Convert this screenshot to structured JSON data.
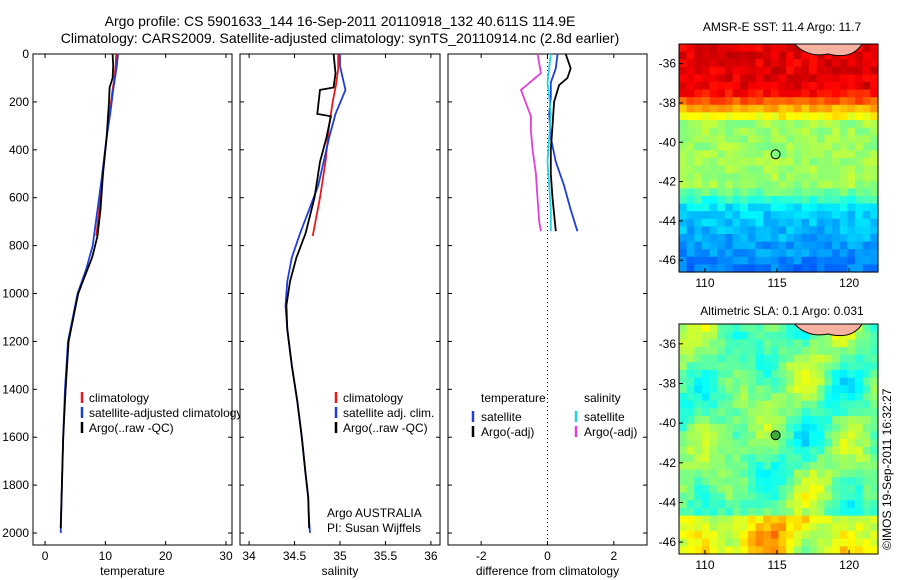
{
  "header": {
    "line1": "Argo profile: CS 5901633_144 16-Sep-2011 20110918_132 40.611S 114.9E",
    "line2": "Climatology: CARS2009. Satellite-adjusted climatology: synTS_20110914.nc (2.8d earlier)"
  },
  "credits": {
    "program": "Argo AUSTRALIA",
    "pi": "PI: Susan Wijffels",
    "stamp": "©IMOS 19-Sep-2011 16:32:27"
  },
  "colors": {
    "climatology": "#e41a1c",
    "satellite": "#1f3fd6",
    "argo": "#000000",
    "sal_satellite": "#22d3e0",
    "sal_argo": "#e23fd8",
    "map_marker": "#000000"
  },
  "chart_data": [
    {
      "type": "line",
      "id": "temperature",
      "xlabel": "temperature",
      "ylabel": "",
      "xlim": [
        -2,
        31
      ],
      "ylim": [
        2050,
        0
      ],
      "xticks": [
        0,
        10,
        20,
        30
      ],
      "yticks": [
        0,
        200,
        400,
        600,
        800,
        1000,
        1200,
        1400,
        1600,
        1800,
        2000
      ],
      "legend": [
        "climatology",
        "satellite-adjusted climatology",
        "Argo(..raw -QC)"
      ],
      "legend_position": "lower-center",
      "series": [
        {
          "name": "climatology",
          "color_key": "climatology",
          "x": [
            11.8,
            11.7,
            11.5,
            11.2,
            10.7,
            10.2,
            9.5,
            9.0,
            8.5
          ],
          "y": [
            0,
            50,
            100,
            150,
            250,
            350,
            500,
            650,
            760
          ]
        },
        {
          "name": "satellite-adjusted climatology",
          "color_key": "satellite",
          "x": [
            12.1,
            11.9,
            11.6,
            11.3,
            10.8,
            10.2,
            9.5,
            8.7,
            7.9,
            6.8,
            5.4,
            4.6,
            3.8,
            3.3,
            3.0,
            2.8,
            2.7,
            2.6
          ],
          "y": [
            0,
            50,
            100,
            150,
            250,
            350,
            500,
            650,
            800,
            900,
            1000,
            1100,
            1200,
            1400,
            1600,
            1800,
            1900,
            2000
          ]
        },
        {
          "name": "Argo(..raw -QC)",
          "color_key": "argo",
          "x": [
            11.2,
            11.3,
            11.2,
            10.7,
            10.6,
            10.2,
            9.6,
            9.2,
            8.7,
            7.8,
            6.7,
            5.5,
            4.7,
            3.9,
            3.4,
            3.0,
            2.8,
            2.6
          ],
          "y": [
            0,
            50,
            100,
            140,
            200,
            350,
            500,
            650,
            760,
            850,
            920,
            1000,
            1100,
            1200,
            1400,
            1600,
            1800,
            1980
          ]
        }
      ]
    },
    {
      "type": "line",
      "id": "salinity",
      "xlabel": "salinity",
      "ylabel": "",
      "xlim": [
        33.9,
        36.1
      ],
      "ylim": [
        2050,
        0
      ],
      "xticks": [
        34,
        34.5,
        35,
        35.5,
        36
      ],
      "xticklabels": [
        "34",
        "34.5",
        "35",
        "35.5",
        "36"
      ],
      "legend": [
        "climatology",
        "satellite adj. clim.",
        "Argo(..raw -QC)"
      ],
      "legend_position": "lower-right",
      "series": [
        {
          "name": "climatology",
          "color_key": "climatology",
          "x": [
            34.98,
            34.98,
            34.96,
            34.92,
            34.88,
            34.84,
            34.78,
            34.7
          ],
          "y": [
            0,
            60,
            120,
            200,
            300,
            450,
            600,
            760
          ]
        },
        {
          "name": "satellite adj. clim.",
          "color_key": "satellite",
          "x": [
            35.0,
            35.0,
            35.03,
            35.06,
            34.95,
            34.88,
            34.82,
            34.76,
            34.66,
            34.56,
            34.47,
            34.42,
            34.4,
            34.42,
            34.47,
            34.53,
            34.58,
            34.62,
            34.65,
            34.66,
            34.67
          ],
          "y": [
            0,
            50,
            100,
            150,
            250,
            350,
            450,
            550,
            650,
            750,
            850,
            950,
            1050,
            1150,
            1300,
            1450,
            1600,
            1750,
            1850,
            1950,
            2000
          ]
        },
        {
          "name": "Argo(..raw -QC)",
          "color_key": "argo",
          "x": [
            34.93,
            34.95,
            34.93,
            34.78,
            34.75,
            34.9,
            34.85,
            34.78,
            34.72,
            34.62,
            34.52,
            34.45,
            34.41,
            34.42,
            34.47,
            34.53,
            34.58,
            34.62,
            34.65,
            34.66
          ],
          "y": [
            0,
            80,
            140,
            150,
            250,
            260,
            350,
            450,
            600,
            750,
            850,
            950,
            1050,
            1150,
            1300,
            1450,
            1600,
            1750,
            1850,
            1980
          ]
        }
      ]
    },
    {
      "type": "line",
      "id": "difference",
      "xlabel": "difference from climatology",
      "ylabel": "",
      "xlim": [
        -3,
        3
      ],
      "ylim": [
        2050,
        0
      ],
      "xticks": [
        -2,
        0,
        2
      ],
      "zero_line": "dotted",
      "legend_groups": [
        {
          "title": "temperature",
          "entries": [
            "satellite",
            "Argo(-adj)"
          ]
        },
        {
          "title": "salinity",
          "entries": [
            "satellite",
            "Argo(-adj)"
          ]
        }
      ],
      "legend_position": "lower-center",
      "series": [
        {
          "name": "satellite",
          "group": "temperature",
          "color_key": "satellite",
          "x": [
            0.3,
            0.25,
            0.1,
            0.1,
            0.05,
            0.1,
            0.25,
            0.5,
            0.7,
            0.9
          ],
          "y": [
            0,
            60,
            120,
            180,
            250,
            350,
            450,
            550,
            650,
            740
          ]
        },
        {
          "name": "Argo(-adj)",
          "group": "temperature",
          "color_key": "argo",
          "x": [
            0.55,
            0.7,
            0.6,
            0.35,
            0.2,
            0.15,
            0.1,
            0.1,
            0.15,
            0.25
          ],
          "y": [
            0,
            60,
            100,
            130,
            200,
            300,
            400,
            500,
            600,
            740
          ]
        },
        {
          "name": "satellite",
          "group": "salinity",
          "color_key": "sal_satellite",
          "x": [
            0.1,
            0.05,
            0.0,
            0.05,
            0.1,
            0.05,
            0.0,
            0.05,
            0.1,
            0.1
          ],
          "y": [
            0,
            60,
            120,
            180,
            250,
            350,
            450,
            550,
            650,
            740
          ]
        },
        {
          "name": "Argo(-adj)",
          "group": "salinity",
          "color_key": "sal_argo",
          "x": [
            -0.3,
            -0.2,
            -0.8,
            -0.5,
            -0.5,
            -0.45,
            -0.35,
            -0.3,
            -0.25,
            -0.2
          ],
          "y": [
            0,
            80,
            150,
            260,
            320,
            400,
            500,
            600,
            700,
            740
          ]
        }
      ]
    }
  ],
  "maps": [
    {
      "id": "sst",
      "title": "AMSR-E SST: 11.4  Argo: 11.7",
      "xlim": [
        108.2,
        122
      ],
      "ylim": [
        -46.6,
        -35
      ],
      "xticks": [
        110,
        115,
        120
      ],
      "yticks": [
        -36,
        -38,
        -40,
        -42,
        -44,
        -46
      ],
      "marker": {
        "lon": 114.9,
        "lat": -40.611
      }
    },
    {
      "id": "sla",
      "title": "Altimetric SLA: 0.1  Argo: 0.031",
      "xlim": [
        108.2,
        122
      ],
      "ylim": [
        -46.6,
        -35
      ],
      "xticks": [
        110,
        115,
        120
      ],
      "yticks": [
        -36,
        -38,
        -40,
        -42,
        -44,
        -46
      ],
      "marker": {
        "lon": 114.9,
        "lat": -40.611
      }
    }
  ]
}
